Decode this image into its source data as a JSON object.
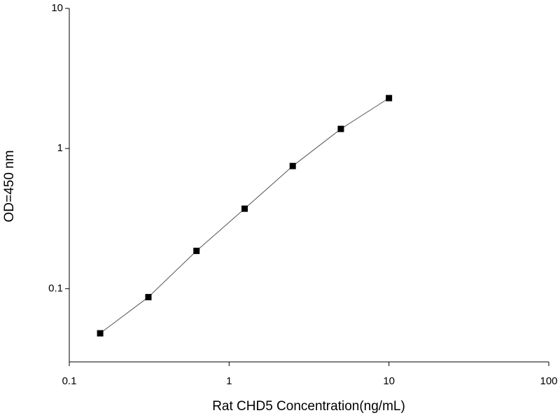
{
  "chart_data": {
    "type": "line",
    "x_label": "Rat CHD5 Concentration(ng/mL)",
    "y_label": "OD=450 nm",
    "x": [
      0.156,
      0.3125,
      0.625,
      1.25,
      2.5,
      5,
      10
    ],
    "series": [
      {
        "color": "#000000",
        "values": [
          0.048,
          0.087,
          0.186,
          0.372,
          0.75,
          1.38,
          2.29
        ]
      }
    ],
    "xlim": [
      0.1,
      100
    ],
    "ylim": [
      0.03,
      10
    ],
    "xticks": [
      0.1,
      1,
      10,
      100
    ],
    "yticks": [
      0.1,
      1,
      10
    ],
    "log_x": true,
    "log_y": true
  }
}
